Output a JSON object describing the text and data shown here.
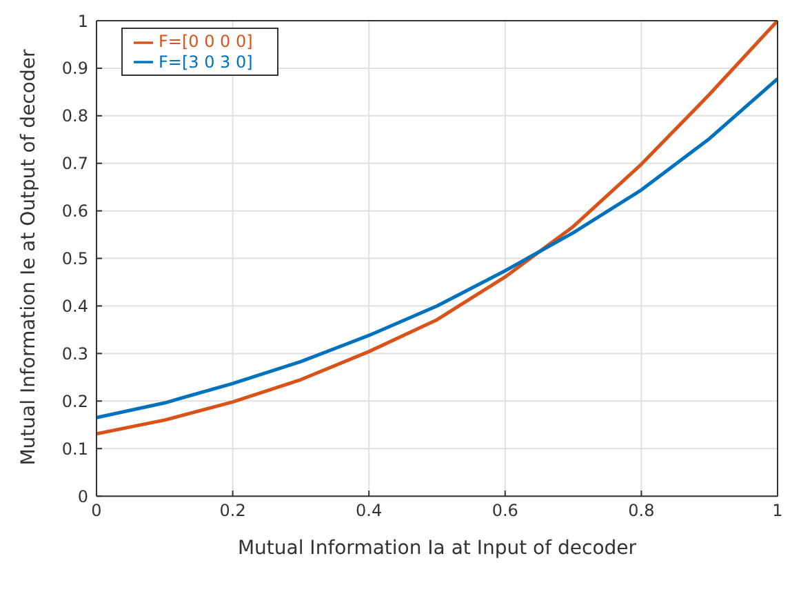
{
  "chart_data": {
    "type": "line",
    "xlabel": "Mutual Information Ia at Input of decoder",
    "ylabel": "Mutual Information Ie at Output of decoder",
    "x": [
      0,
      0.1,
      0.2,
      0.3,
      0.4,
      0.5,
      0.6,
      0.7,
      0.8,
      0.9,
      1
    ],
    "series": [
      {
        "name": "F=[0 0 0 0]",
        "color": "#d95319",
        "values": [
          0.131,
          0.16,
          0.198,
          0.245,
          0.304,
          0.371,
          0.461,
          0.567,
          0.698,
          0.845,
          1.0
        ]
      },
      {
        "name": "F=[3 0 3 0]",
        "color": "#0072bd",
        "values": [
          0.165,
          0.196,
          0.237,
          0.283,
          0.338,
          0.4,
          0.474,
          0.554,
          0.644,
          0.752,
          0.878
        ]
      }
    ],
    "xlim": [
      0,
      1
    ],
    "xticks": [
      0,
      0.2,
      0.4,
      0.6,
      0.8,
      1
    ],
    "ylim": [
      0,
      1
    ],
    "yticks": [
      0,
      0.1,
      0.2,
      0.3,
      0.4,
      0.5,
      0.6,
      0.7,
      0.8,
      0.9,
      1
    ],
    "grid": true,
    "legend": "top left",
    "marker": "none",
    "line_style": "solid"
  }
}
